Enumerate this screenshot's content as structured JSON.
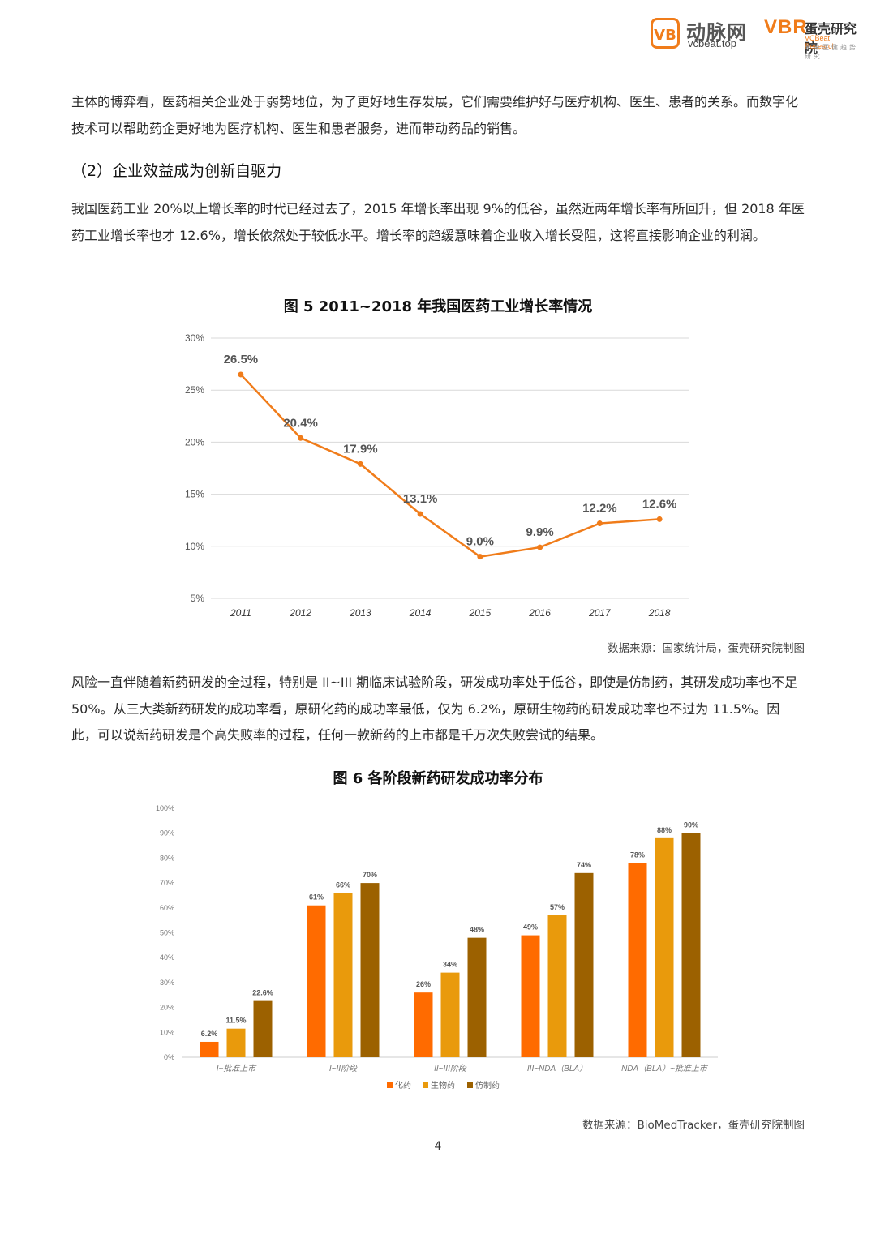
{
  "header": {
    "vb_logo": "VB",
    "site_name": "动脉网",
    "site_domain": "vcbeat.top",
    "research_mark": "VBR",
    "research_name": "蛋壳研究院",
    "research_en": "VCBeat Research",
    "tagline": "未来医健趋势研究"
  },
  "body": {
    "para1": "主体的博弈看，医药相关企业处于弱势地位，为了更好地生存发展，它们需要维护好与医疗机构、医生、患者的关系。而数字化技术可以帮助药企更好地为医疗机构、医生和患者服务，进而带动药品的销售。",
    "heading2": "（2）企业效益成为创新自驱力",
    "para2": "我国医药工业 20%以上增长率的时代已经过去了，2015 年增长率出现 9%的低谷，虽然近两年增长率有所回升，但 2018 年医药工业增长率也才 12.6%，增长依然处于较低水平。增长率的趋缓意味着企业收入增长受阻，这将直接影响企业的利润。",
    "fig5_title": "图 5 2011~2018 年我国医药工业增长率情况",
    "fig5_source": "数据来源：国家统计局，蛋壳研究院制图",
    "para3": "风险一直伴随着新药研发的全过程，特别是 II~III 期临床试验阶段，研发成功率处于低谷，即使是仿制药，其研发成功率也不足 50%。从三大类新药研发的成功率看，原研化药的成功率最低，仅为 6.2%，原研生物药的研发成功率也不过为 11.5%。因此，可以说新药研发是个高失败率的过程，任何一款新药的上市都是千万次失败尝试的结果。",
    "fig6_title": "图 6 各阶段新药研发成功率分布",
    "fig6_source": "数据来源：BioMedTracker，蛋壳研究院制图",
    "page_number": "4"
  },
  "chart_data": [
    {
      "type": "line",
      "x": [
        "2011",
        "2012",
        "2013",
        "2014",
        "2015",
        "2016",
        "2017",
        "2018"
      ],
      "values": [
        26.5,
        20.4,
        17.9,
        13.1,
        9.0,
        9.9,
        12.2,
        12.6
      ],
      "data_labels": [
        "26.5%",
        "20.4%",
        "17.9%",
        "13.1%",
        "9.0%",
        "9.9%",
        "12.2%",
        "12.6%"
      ],
      "yticks": [
        "5%",
        "10%",
        "15%",
        "20%",
        "25%",
        "30%"
      ],
      "ylim": [
        5,
        30
      ],
      "grid": true,
      "color": "#f07c1a"
    },
    {
      "type": "bar",
      "categories": [
        "I~批准上市",
        "I~II阶段",
        "II~III阶段",
        "III~NDA（BLA）",
        "NDA（BLA）~批准上市"
      ],
      "series": [
        {
          "name": "化药",
          "values": [
            6.2,
            61,
            26,
            49,
            78
          ],
          "labels": [
            "6.2%",
            "61%",
            "26%",
            "49%",
            "78%"
          ],
          "color": "#ff6b00"
        },
        {
          "name": "生物药",
          "values": [
            11.5,
            66,
            34,
            57,
            88
          ],
          "labels": [
            "11.5%",
            "66%",
            "34%",
            "57%",
            "88%"
          ],
          "color": "#e99a0c"
        },
        {
          "name": "仿制药",
          "values": [
            22.6,
            70,
            48,
            74,
            90
          ],
          "labels": [
            "22.6%",
            "70%",
            "48%",
            "74%",
            "90%"
          ],
          "color": "#9c6100"
        }
      ],
      "yticks": [
        "0%",
        "10%",
        "20%",
        "30%",
        "40%",
        "50%",
        "60%",
        "70%",
        "80%",
        "90%",
        "100%"
      ],
      "ylim": [
        0,
        100
      ],
      "grid": false,
      "legend": "bottom"
    }
  ]
}
